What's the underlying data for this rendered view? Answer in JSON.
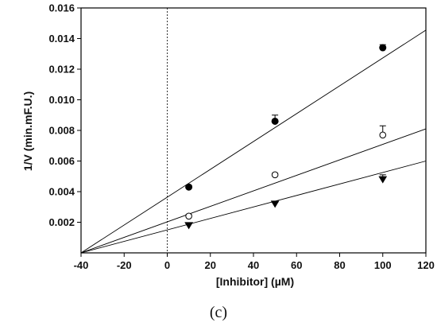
{
  "chart_data": {
    "type": "scatter",
    "xlabel": "[Inhibitor] (µM)",
    "ylabel": "1/V (min.mF.U.)",
    "xlim": [
      -40,
      120
    ],
    "ylim": [
      0,
      0.016
    ],
    "x_ticks": [
      -40,
      -20,
      0,
      20,
      40,
      60,
      80,
      100,
      120
    ],
    "y_ticks": [
      0.002,
      0.004,
      0.006,
      0.008,
      0.01,
      0.012,
      0.014,
      0.016
    ],
    "y_tick_labels": [
      "0.002",
      "0.004",
      "0.006",
      "0.008",
      "0.010",
      "0.012",
      "0.014",
      "0.016"
    ],
    "grid": false,
    "reference_line": {
      "type": "vertical",
      "x": 0,
      "style": "dotted"
    },
    "series": [
      {
        "marker": "filled-circle",
        "x": [
          10,
          50,
          100
        ],
        "y": [
          0.0043,
          0.0086,
          0.0134
        ],
        "error": [
          0.0001,
          0.0004,
          0.0002
        ],
        "fit": {
          "x0": -40,
          "y0": 0.0,
          "x1": 120,
          "y1": 0.01455
        }
      },
      {
        "marker": "open-circle",
        "x": [
          10,
          50,
          100
        ],
        "y": [
          0.0024,
          0.0051,
          0.0077
        ],
        "error": [
          0.0001,
          0.0001,
          0.0006
        ],
        "fit": {
          "x0": -40,
          "y0": 0.0,
          "x1": 120,
          "y1": 0.0081
        }
      },
      {
        "marker": "filled-triangle-down",
        "x": [
          10,
          50,
          100
        ],
        "y": [
          0.0018,
          0.0032,
          0.0048
        ],
        "error": [
          0.0001,
          0.0001,
          0.0003
        ],
        "fit": {
          "x0": -40,
          "y0": 0.0,
          "x1": 120,
          "y1": 0.006
        }
      }
    ]
  },
  "panel_label": "(c)"
}
